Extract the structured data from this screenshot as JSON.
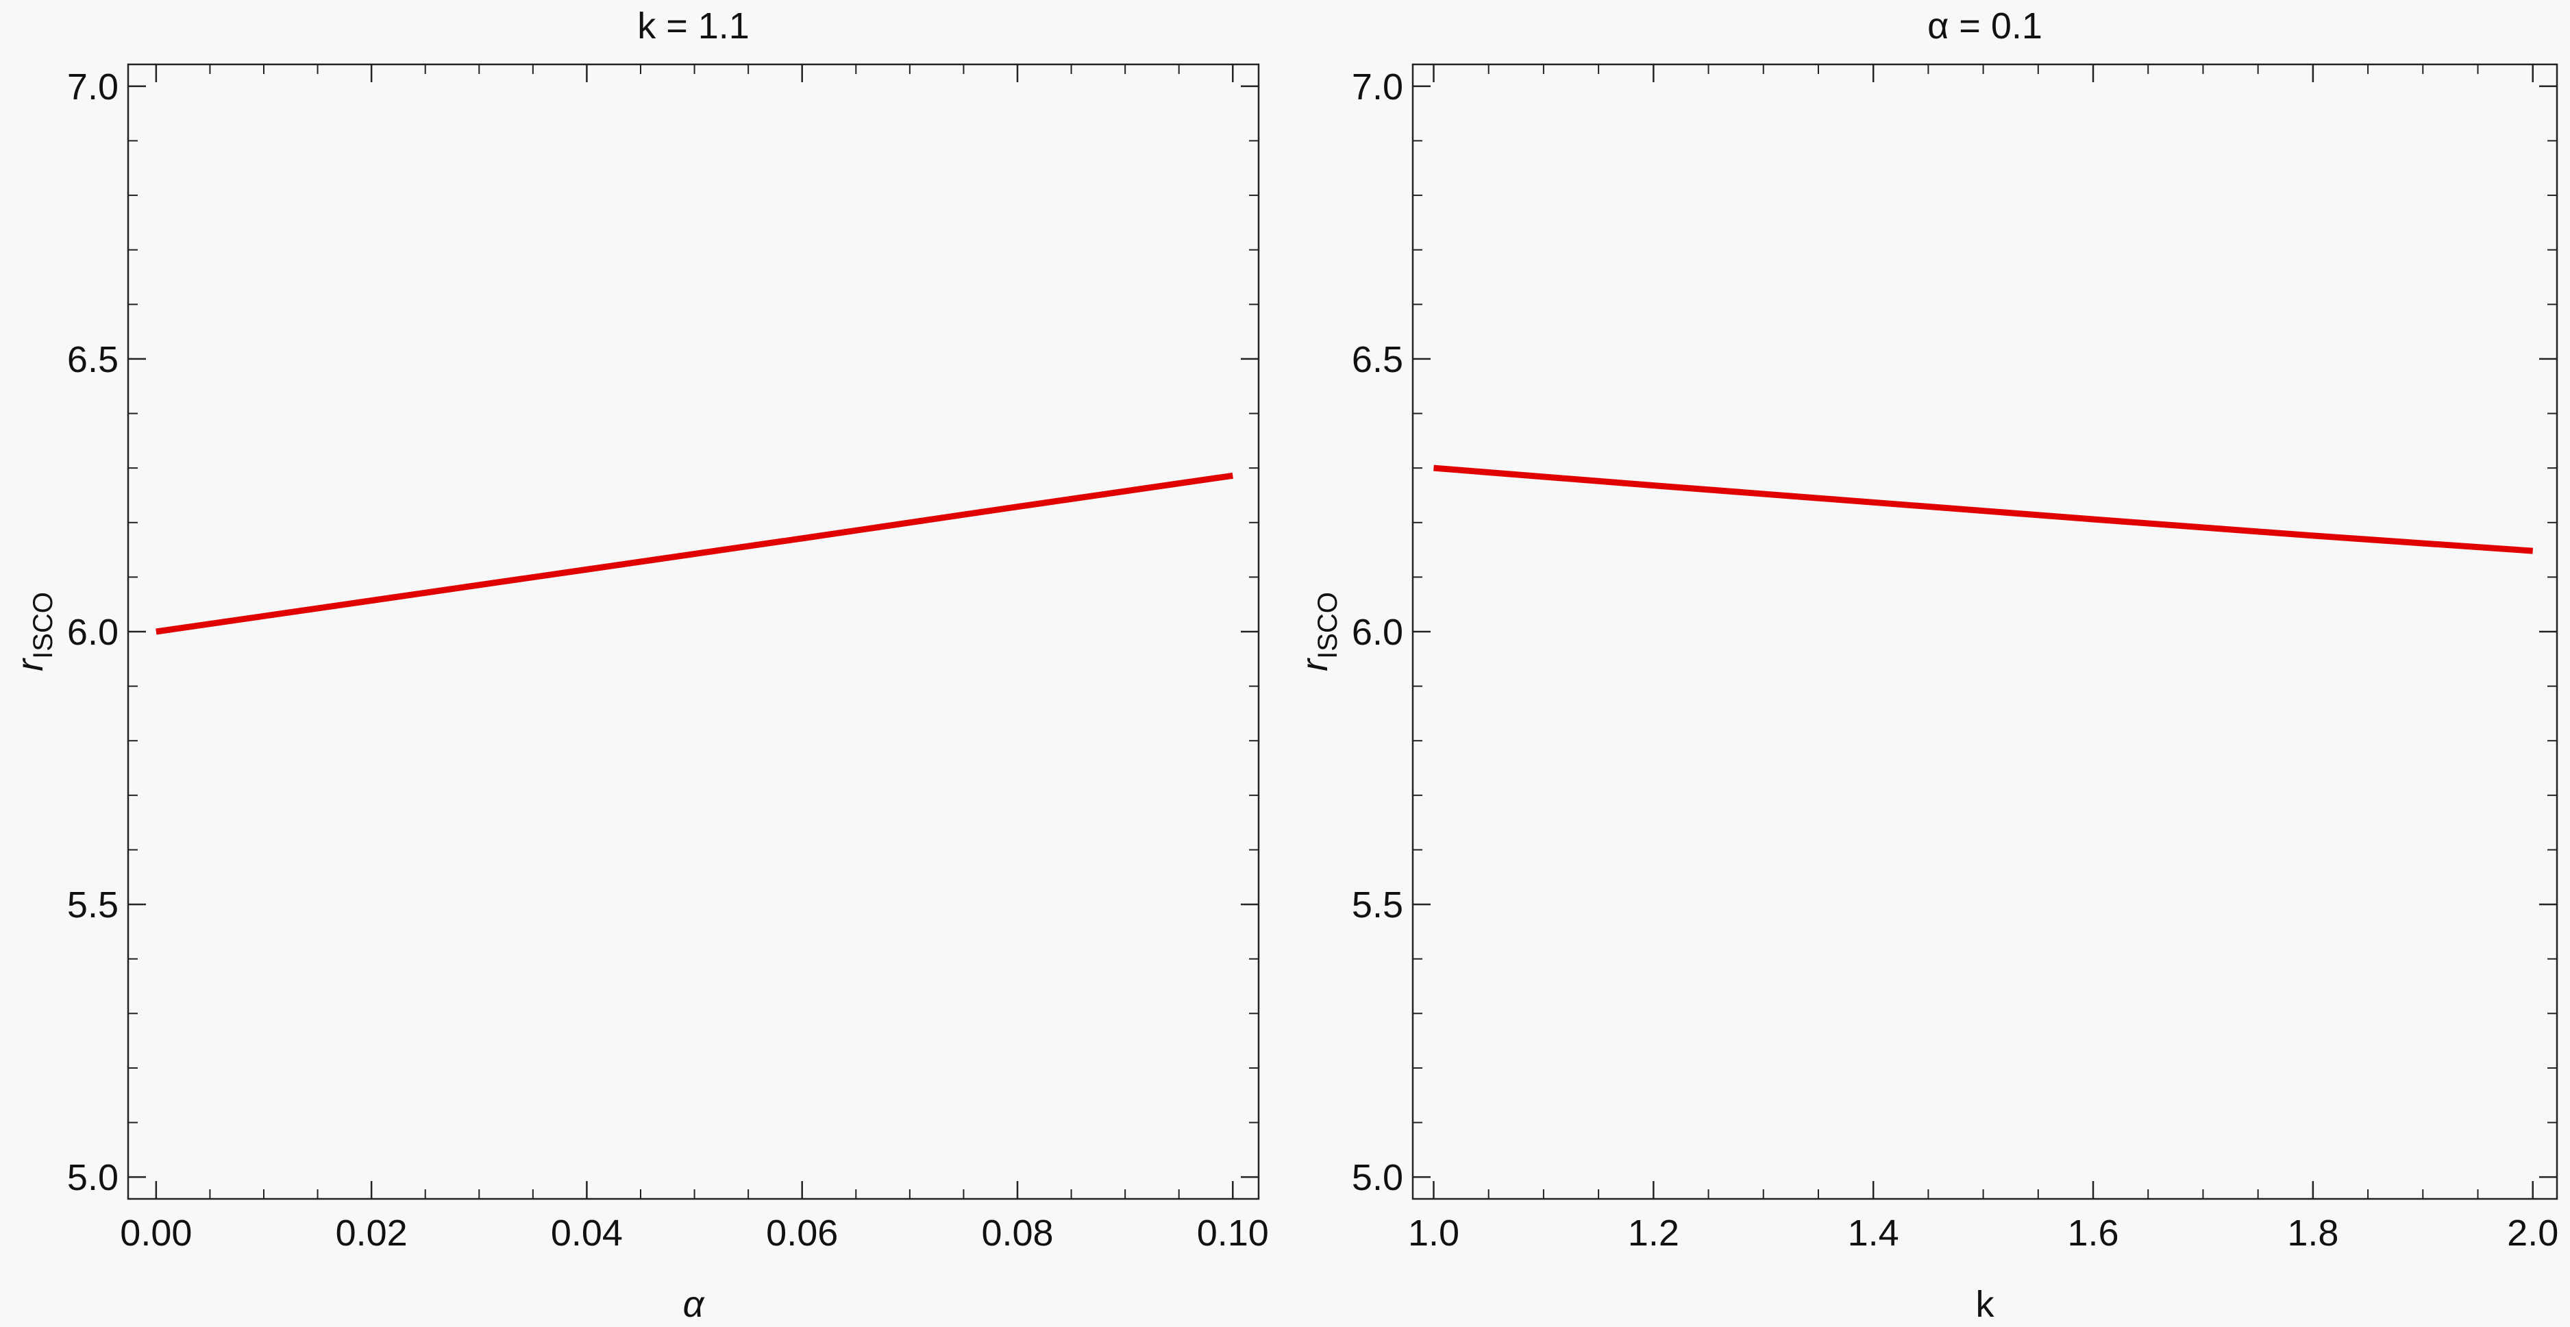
{
  "chart_data": [
    {
      "type": "line",
      "title": "k = 1.1",
      "x_label": "α",
      "y_label": "r",
      "y_label_sub": "ISCO",
      "x": [
        0,
        0.02,
        0.04,
        0.06,
        0.08,
        0.1
      ],
      "values": [
        6.0,
        6.057,
        6.114,
        6.171,
        6.229,
        6.286
      ],
      "color": "#e00000",
      "xlim": [
        -0.0026,
        0.1024
      ],
      "ylim": [
        4.96,
        7.04
      ],
      "xticks": [
        {
          "value": 0,
          "label": "0.00"
        },
        {
          "value": 0.02,
          "label": "0.02"
        },
        {
          "value": 0.04,
          "label": "0.04"
        },
        {
          "value": 0.06,
          "label": "0.06"
        },
        {
          "value": 0.08,
          "label": "0.08"
        },
        {
          "value": 0.1,
          "label": "0.10"
        }
      ],
      "yticks": [
        {
          "value": 5,
          "label": "5.0"
        },
        5.5,
        {
          "value": 6,
          "label": "6.0"
        },
        6.5,
        {
          "value": 7,
          "label": "7.0"
        }
      ]
    },
    {
      "type": "line",
      "title": "α = 0.1",
      "x_label": "k",
      "y_label": "r",
      "y_label_sub": "ISCO",
      "x": [
        1.0,
        1.2,
        1.4,
        1.6,
        1.8,
        2.0
      ],
      "values": [
        6.3,
        6.268,
        6.237,
        6.206,
        6.176,
        6.148
      ],
      "color": "#e00000",
      "xlim": [
        0.981,
        2.022
      ],
      "ylim": [
        4.96,
        7.04
      ],
      "xticks": [
        {
          "value": 1,
          "label": "1.0"
        },
        1.2,
        1.4,
        1.6,
        1.8,
        {
          "value": 2,
          "label": "2.0"
        }
      ],
      "yticks": [
        {
          "value": 5,
          "label": "5.0"
        },
        5.5,
        {
          "value": 6,
          "label": "6.0"
        },
        6.5,
        {
          "value": 7,
          "label": "7.0"
        }
      ]
    }
  ]
}
